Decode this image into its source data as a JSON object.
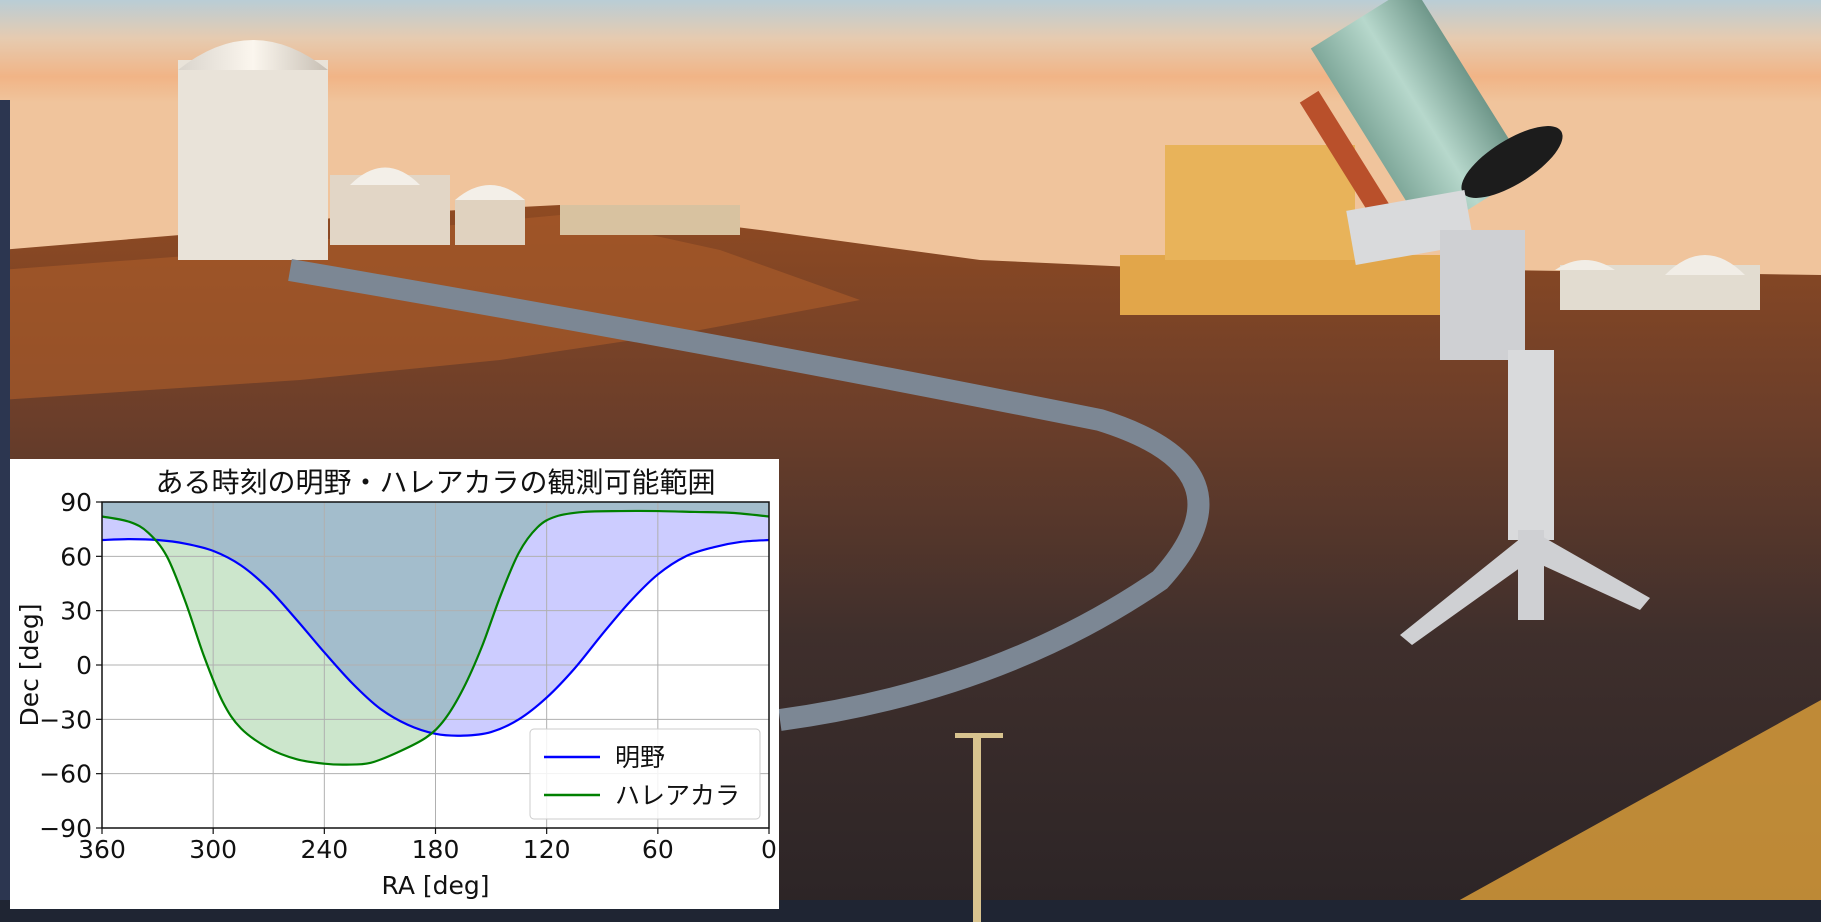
{
  "chart_data": {
    "type": "area",
    "title": "ある時刻の明野・ハレアカラの観測可能範囲",
    "xlabel": "RA [deg]",
    "ylabel": "Dec [deg]",
    "xlim": [
      360,
      0
    ],
    "ylim": [
      -90,
      90
    ],
    "x_inverted": true,
    "x_ticks": [
      360,
      300,
      240,
      180,
      120,
      60,
      0
    ],
    "y_ticks": [
      90,
      60,
      30,
      0,
      -30,
      -60,
      -90
    ],
    "x_tick_labels": [
      "360",
      "300",
      "240",
      "180",
      "120",
      "60",
      "0"
    ],
    "y_tick_labels": [
      "90",
      "60",
      "30",
      "0",
      "−30",
      "−60",
      "−90"
    ],
    "grid": true,
    "legend_position": "lower-right",
    "series": [
      {
        "name": "明野",
        "color": "#0000ff",
        "fill": "above",
        "fill_color": "#0000ff",
        "x": [
          360,
          345,
          330,
          315,
          300,
          285,
          270,
          255,
          240,
          225,
          210,
          195,
          180,
          165,
          150,
          135,
          120,
          105,
          90,
          75,
          60,
          45,
          30,
          15,
          0
        ],
        "y": [
          69,
          69.5,
          69,
          67,
          63,
          55,
          42,
          25,
          7,
          -10,
          -24,
          -33,
          -38,
          -39,
          -37,
          -30,
          -18,
          -2,
          17,
          35,
          50,
          60,
          65,
          68,
          69
        ]
      },
      {
        "name": "ハレアカラ",
        "color": "#008000",
        "fill": "above",
        "fill_color": "#008000",
        "x": [
          360,
          345,
          335,
          325,
          315,
          305,
          295,
          285,
          270,
          255,
          240,
          228,
          215,
          200,
          185,
          175,
          165,
          155,
          145,
          135,
          125,
          115,
          100,
          80,
          60,
          40,
          20,
          0
        ],
        "y": [
          82,
          79,
          73,
          60,
          35,
          5,
          -20,
          -35,
          -46,
          -52,
          -54.5,
          -55,
          -54,
          -48,
          -40,
          -30,
          -13,
          10,
          38,
          62,
          76,
          82,
          84.5,
          85,
          85,
          84.5,
          84,
          82
        ]
      }
    ]
  }
}
